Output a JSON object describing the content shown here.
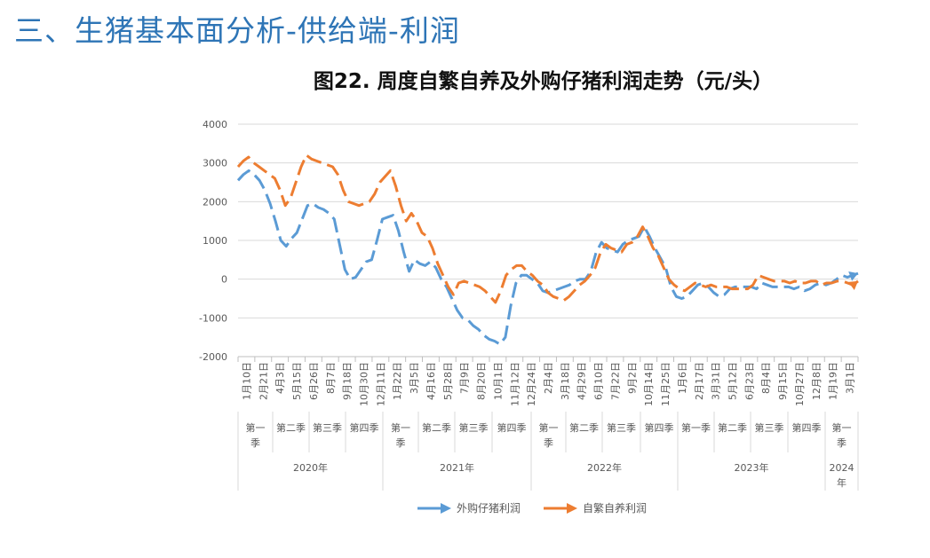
{
  "page_title": "三、生猪基本面分析-供给端-利润",
  "chart_data": {
    "type": "line",
    "title": "图22. 周度自繁自养及外购仔猪利润走势（元/头）",
    "ylim": [
      -2000,
      4000
    ],
    "y_ticks": [
      "4000",
      "3000",
      "2000",
      "1000",
      "0",
      "-1000",
      "-2000"
    ],
    "date_labels": [
      "1月10日",
      "2月21日",
      "4月3日",
      "5月15日",
      "6月26日",
      "8月7日",
      "9月18日",
      "10月30日",
      "12月11日",
      "1月22日",
      "3月5日",
      "4月16日",
      "5月28日",
      "7月9日",
      "8月20日",
      "10月1日",
      "11月12日",
      "12月24日",
      "2月4日",
      "3月18日",
      "4月29日",
      "6月10日",
      "7月22日",
      "9月2日",
      "10月14日",
      "11月25日",
      "1月6日",
      "2月17日",
      "3月31日",
      "5月12日",
      "6月23日",
      "8月4日",
      "9月15日",
      "10月27日",
      "12月8日",
      "1月19日",
      "3月1日"
    ],
    "quarter_labels": [
      "第一季",
      "第二季",
      "第三季",
      "第四季",
      "第一季",
      "第二季",
      "第三季",
      "第四季",
      "第一季",
      "第二季",
      "第三季",
      "第四季",
      "第一季",
      "第二季",
      "第三季",
      "第四季",
      "第一季"
    ],
    "year_labels": [
      "2020年",
      "2021年",
      "2022年",
      "2023年",
      "2024年"
    ],
    "series": [
      {
        "name": "外购仔猪利润",
        "color": "#5b9bd5",
        "values": [
          2550,
          2700,
          2800,
          2700,
          2550,
          2300,
          1950,
          1500,
          1000,
          850,
          1050,
          1200,
          1550,
          1900,
          1950,
          1850,
          1800,
          1700,
          1550,
          900,
          250,
          0,
          50,
          250,
          450,
          500,
          1000,
          1550,
          1600,
          1650,
          1250,
          700,
          200,
          500,
          400,
          350,
          450,
          300,
          0,
          -200,
          -500,
          -800,
          -1000,
          -1050,
          -1200,
          -1300,
          -1450,
          -1550,
          -1600,
          -1680,
          -1500,
          -700,
          -100,
          100,
          100,
          0,
          -100,
          -300,
          -350,
          -300,
          -250,
          -200,
          -150,
          -50,
          0,
          0,
          200,
          700,
          950,
          800,
          750,
          700,
          900,
          1000,
          1050,
          1100,
          1350,
          1100,
          800,
          550,
          300,
          -200,
          -450,
          -500,
          -450,
          -300,
          -150,
          -100,
          -200,
          -350,
          -450,
          -400,
          -250,
          -200,
          -200,
          -200,
          -200,
          -250,
          -100,
          -150,
          -200,
          -200,
          -200,
          -200,
          -250,
          -200,
          -300,
          -250,
          -150,
          -100,
          -150,
          -100,
          0,
          100,
          50,
          100,
          150
        ]
      },
      {
        "name": "自繁自养利润",
        "color": "#ed7d31",
        "values": [
          2900,
          3050,
          3150,
          3000,
          2900,
          2800,
          2700,
          2600,
          2300,
          1900,
          2100,
          2500,
          2900,
          3200,
          3100,
          3050,
          3000,
          2950,
          2900,
          2700,
          2300,
          2000,
          1950,
          1900,
          1950,
          2000,
          2200,
          2500,
          2650,
          2800,
          2400,
          1900,
          1500,
          1700,
          1500,
          1200,
          1100,
          800,
          400,
          100,
          -200,
          -400,
          -100,
          -50,
          -100,
          -150,
          -200,
          -300,
          -450,
          -600,
          -300,
          100,
          250,
          350,
          350,
          200,
          100,
          -50,
          -150,
          -350,
          -450,
          -500,
          -550,
          -450,
          -300,
          -150,
          -50,
          100,
          300,
          700,
          900,
          800,
          750,
          700,
          900,
          950,
          1100,
          1350,
          1100,
          800,
          600,
          300,
          0,
          -150,
          -250,
          -300,
          -200,
          -100,
          -150,
          -200,
          -150,
          -200,
          -200,
          -200,
          -250,
          -250,
          -250,
          -250,
          -150,
          100,
          50,
          0,
          -50,
          -50,
          -50,
          -100,
          -50,
          -100,
          -100,
          -50,
          -50,
          -150,
          -100,
          -100,
          -50,
          -50,
          -100,
          -150,
          -50
        ]
      }
    ],
    "legend_position": "bottom"
  }
}
